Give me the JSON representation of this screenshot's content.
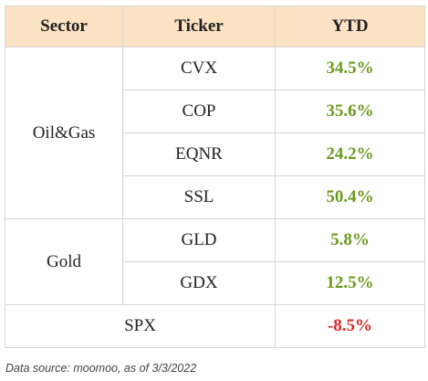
{
  "table": {
    "headers": {
      "sector": "Sector",
      "ticker": "Ticker",
      "ytd": "YTD"
    },
    "groups": [
      {
        "sector": "Oil&Gas",
        "rows": [
          {
            "ticker": "CVX",
            "ytd": "34.5%"
          },
          {
            "ticker": "COP",
            "ytd": "35.6%"
          },
          {
            "ticker": "EQNR",
            "ytd": "24.2%"
          },
          {
            "ticker": "SSL",
            "ytd": "50.4%"
          }
        ]
      },
      {
        "sector": "Gold",
        "rows": [
          {
            "ticker": "GLD",
            "ytd": "5.8%"
          },
          {
            "ticker": "GDX",
            "ytd": "12.5%"
          }
        ]
      }
    ],
    "benchmark": {
      "label": "SPX",
      "ytd": "-8.5%"
    }
  },
  "colors": {
    "header_bg": "#fbe2c2",
    "positive": "#6c9a1f",
    "negative": "#d92a2a"
  },
  "footer": {
    "source": "Data source: moomoo, as of 3/3/2022"
  }
}
